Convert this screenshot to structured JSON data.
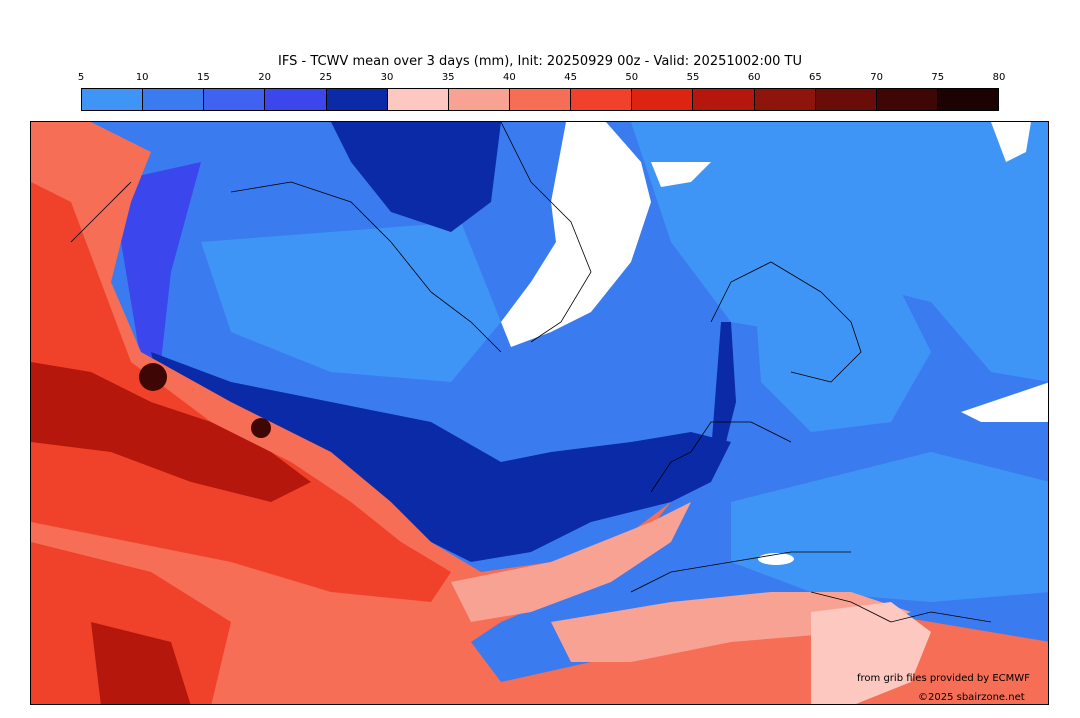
{
  "title": "IFS - TCWV mean over 3 days (mm), Init: 20250929 00z - Valid: 20251002:00 TU",
  "colorbar": {
    "ticks": [
      "5",
      "10",
      "15",
      "20",
      "25",
      "30",
      "35",
      "40",
      "45",
      "50",
      "55",
      "60",
      "65",
      "70",
      "75",
      "80"
    ],
    "colors": [
      "#3f95f5",
      "#3a7cf0",
      "#3f62f0",
      "#3b47ec",
      "#0a2aa8",
      "#fcc8c0",
      "#f8a294",
      "#f56e55",
      "#f0422a",
      "#dc2410",
      "#b5170c",
      "#8e140c",
      "#6a0d08",
      "#3e0604",
      "#1c0202"
    ]
  },
  "map": {
    "ocean_colors": {
      "low": "#3f95f5",
      "mid": "#3a7cf0",
      "high": "#3b47ec",
      "deep": "#0a2aa8",
      "land_ice": "#ffffff"
    },
    "moist_colors": {
      "pink": "#f8a294",
      "light": "#f56e55",
      "red": "#f0422a",
      "dark": "#b5170c",
      "core": "#3e0604"
    }
  },
  "credits": {
    "line1": "from grib files provided by ECMWF",
    "line2": "©2025 sbairzone.net"
  }
}
